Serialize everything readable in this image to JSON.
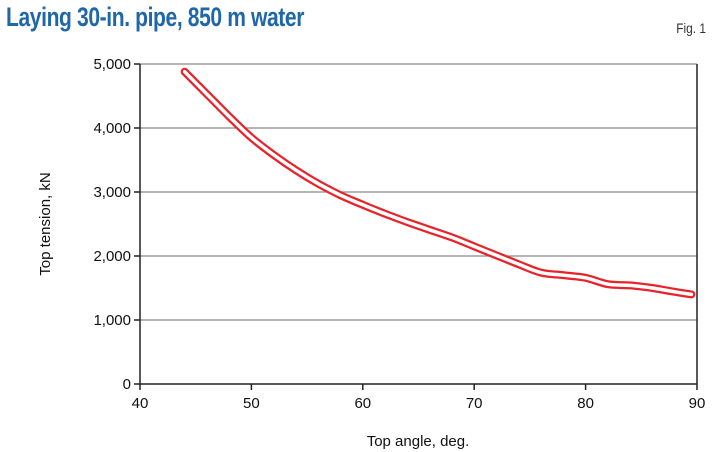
{
  "title": "Laying 30-in. pipe, 850 m water",
  "fig_label": "Fig. 1",
  "colors": {
    "title": "#1f67a8",
    "curve_outline": "#e8232b",
    "curve_fill": "#ffffff",
    "grid": "#8a8a8a",
    "axis": "#222222"
  },
  "chart_data": {
    "type": "line",
    "title": "Laying 30-in. pipe, 850 m water",
    "xlabel": "Top angle, deg.",
    "ylabel": "Top tension, kN",
    "xlim": [
      40,
      90
    ],
    "ylim": [
      0,
      5000
    ],
    "x_ticks": [
      40,
      50,
      60,
      70,
      80,
      90
    ],
    "y_ticks": [
      0,
      1000,
      2000,
      3000,
      4000,
      5000
    ],
    "x_tick_labels": [
      "40",
      "50",
      "60",
      "70",
      "80",
      "90"
    ],
    "y_tick_labels": [
      "0",
      "1,000",
      "2,000",
      "3,000",
      "4,000",
      "5,000"
    ],
    "grid": "horizontal",
    "series": [
      {
        "x": [
          44,
          46,
          48,
          50,
          52,
          54,
          56,
          58,
          60,
          62,
          64,
          66,
          68,
          70,
          72,
          74,
          76,
          78,
          80,
          82,
          84,
          86,
          88,
          89.5
        ],
        "y": [
          4880,
          4530,
          4180,
          3850,
          3580,
          3340,
          3130,
          2950,
          2800,
          2660,
          2530,
          2410,
          2290,
          2150,
          2010,
          1870,
          1740,
          1700,
          1660,
          1560,
          1540,
          1500,
          1440,
          1400
        ]
      }
    ]
  }
}
